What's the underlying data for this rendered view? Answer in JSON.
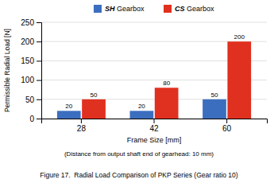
{
  "chart_data": {
    "type": "bar",
    "title": "Figure 17.  Radial Load Comparison of PKP Series (Gear ratio 10)",
    "subtitle": "(Distance from output shaft end of gearhead: 10 mm)",
    "x_label": "Frame Size [mm]",
    "y_label": "Permissible Radial Load [N]",
    "categories": [
      "28",
      "42",
      "60"
    ],
    "series": [
      {
        "name": "SH Gearbox",
        "color": "#3c6ebf",
        "values": [
          20,
          20,
          50
        ]
      },
      {
        "name": "CS Gearbox",
        "color": "#e03020",
        "values": [
          50,
          80,
          200
        ]
      }
    ],
    "ylim": [
      0,
      250
    ],
    "yticks": [
      0,
      50,
      100,
      150,
      200,
      250
    ],
    "grid": true,
    "legend": "top",
    "data_labels": true
  }
}
